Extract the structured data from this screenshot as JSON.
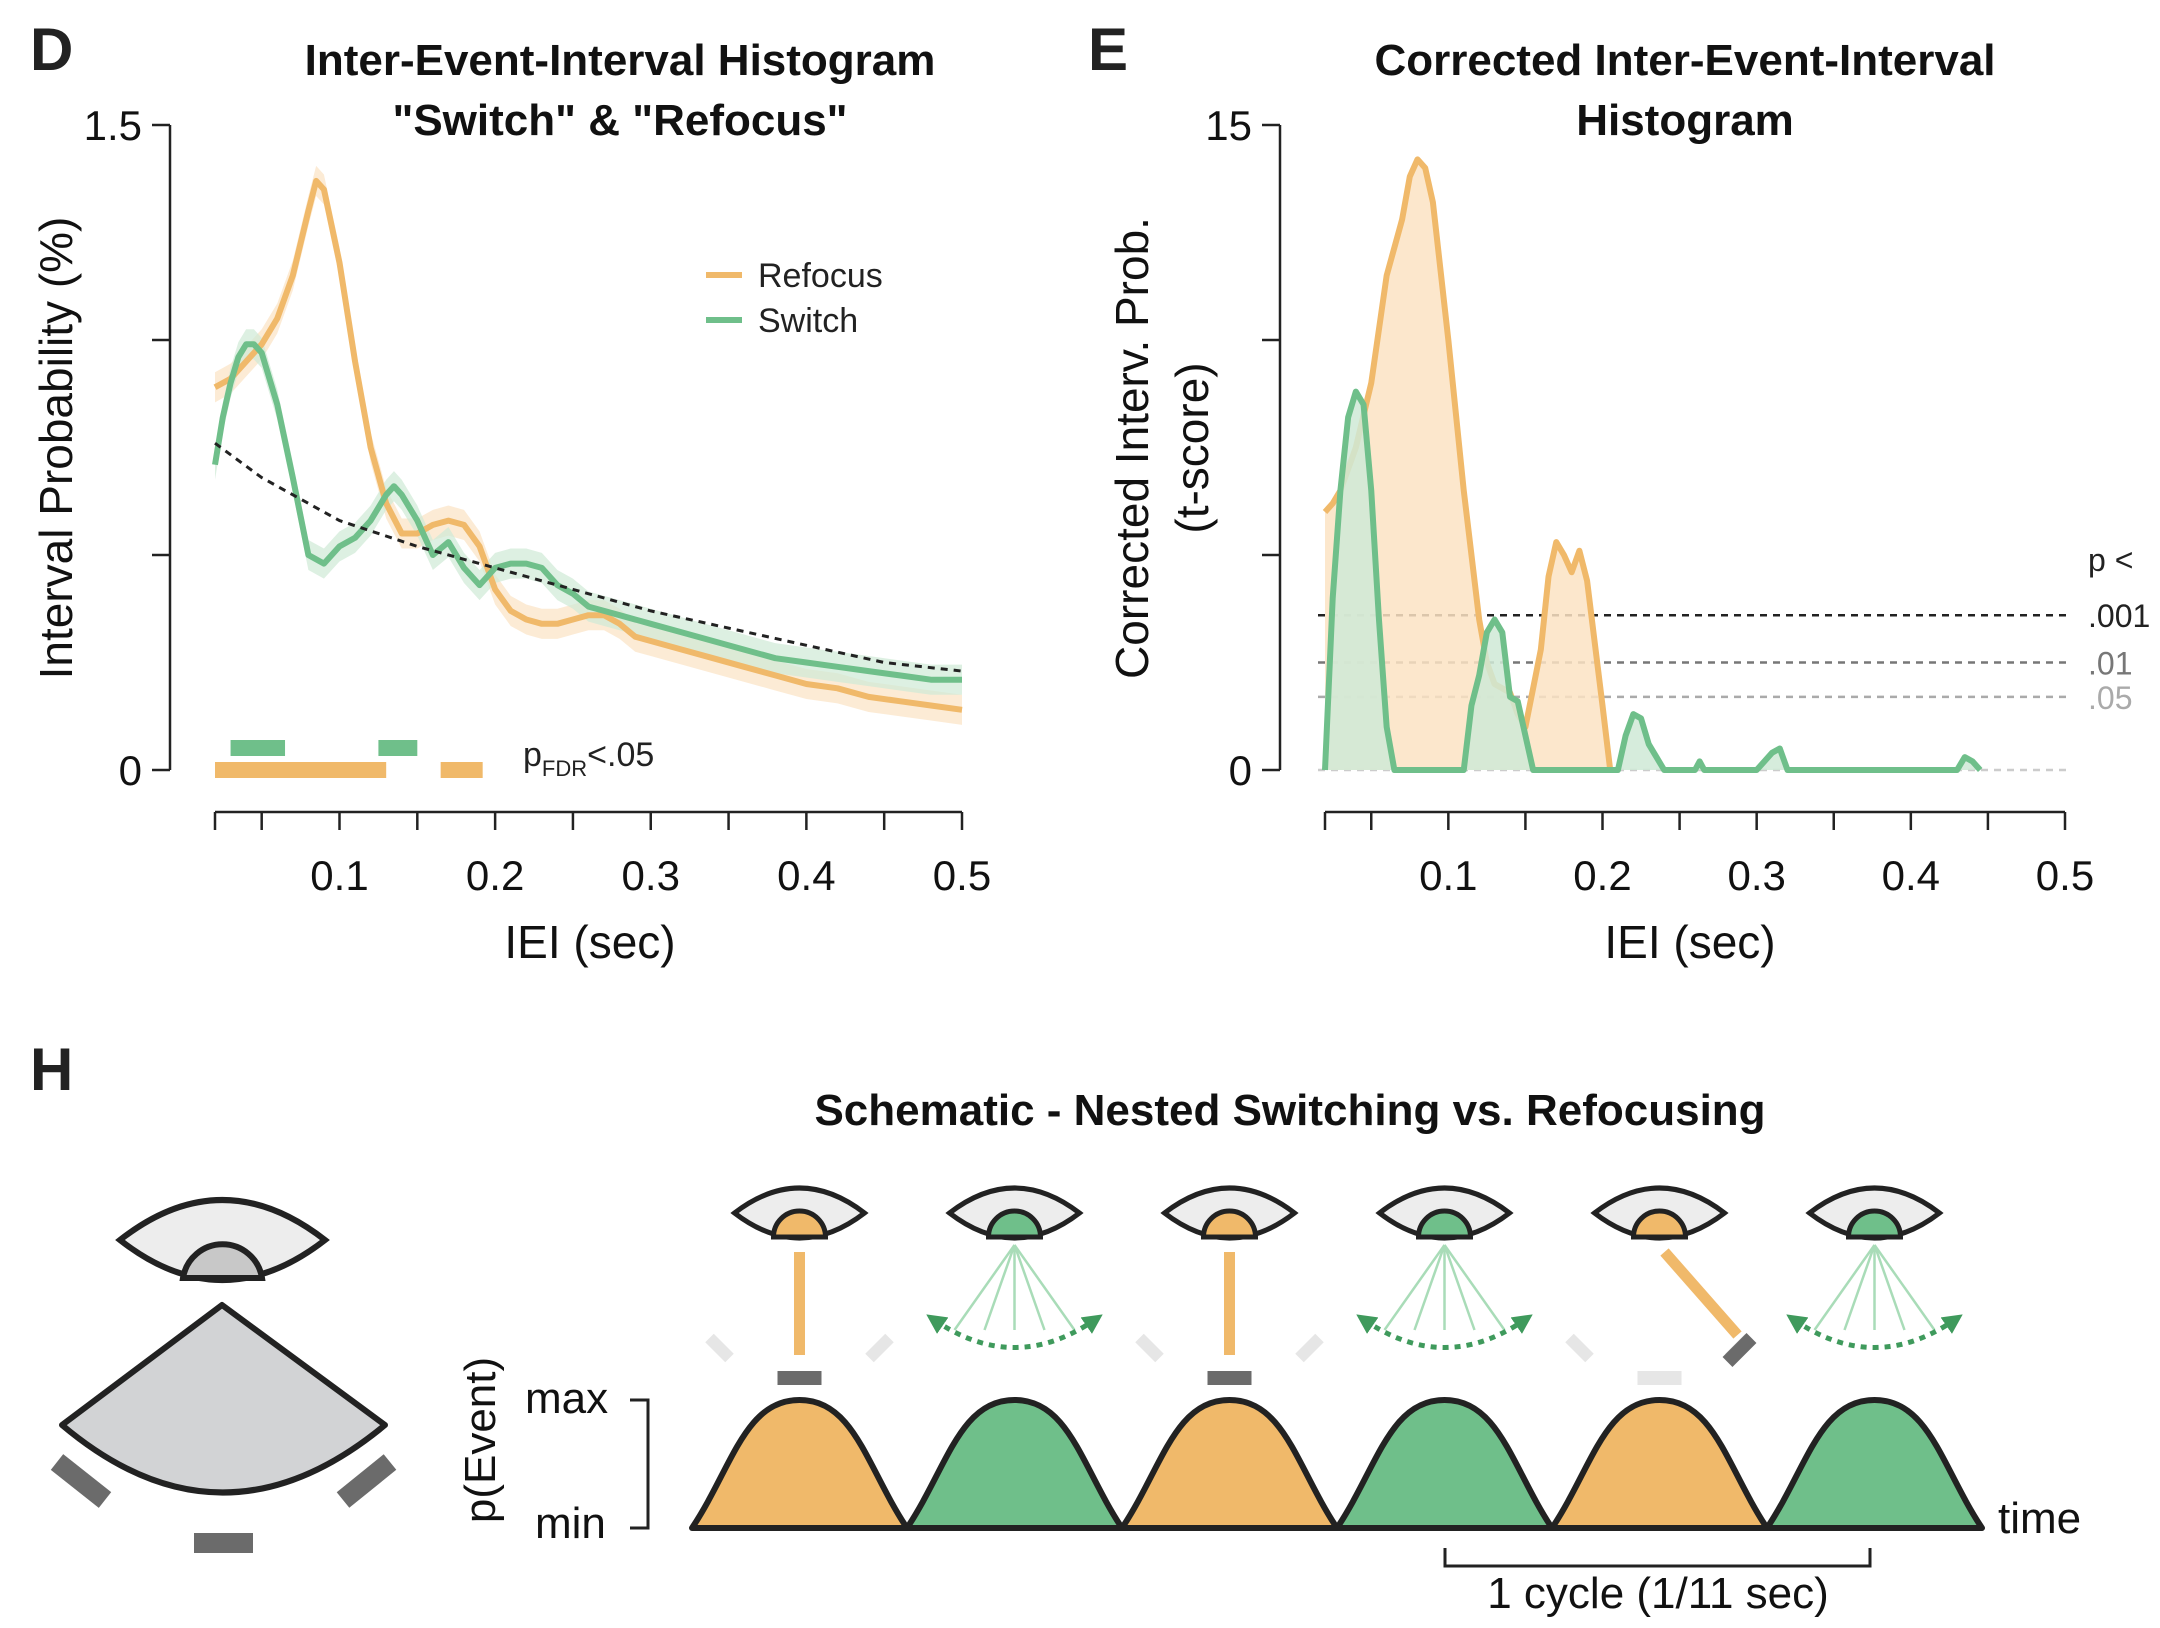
{
  "panels": {
    "D": {
      "letter": "D",
      "title_line1": "Inter-Event-Interval Histogram",
      "title_line2": "\"Switch\" & \"Refocus\""
    },
    "E": {
      "letter": "E",
      "title_line1": "Corrected Inter-Event-Interval",
      "title_line2": "Histogram"
    },
    "H": {
      "letter": "H",
      "title": "Schematic - Nested Switching vs. Refocusing"
    }
  },
  "colors": {
    "refocus": "#f0b96a",
    "switch": "#6fbf8a",
    "refocus_fill": "#fbe3c3",
    "switch_fill": "#cfe9d6"
  },
  "chart_data": [
    {
      "id": "D",
      "type": "line",
      "title": "Inter-Event-Interval Histogram \"Switch\" & \"Refocus\"",
      "xlabel": "IEI (sec)",
      "ylabel": "Interval Probability (%)",
      "xlim": [
        0.02,
        0.5
      ],
      "ylim": [
        0,
        1.5
      ],
      "xticks": [
        0.1,
        0.2,
        0.3,
        0.4,
        0.5
      ],
      "xtick_labels": [
        "0.1",
        "0.2",
        "0.3",
        "0.4",
        "0.5"
      ],
      "yticks": [
        0,
        1.5
      ],
      "ytick_labels": [
        "0",
        "1.5"
      ],
      "legend": {
        "position": "top-right",
        "entries": [
          "Refocus",
          "Switch"
        ]
      },
      "series": [
        {
          "name": "Refocus",
          "color": "#f0b96a",
          "x": [
            0.02,
            0.03,
            0.04,
            0.05,
            0.06,
            0.07,
            0.08,
            0.085,
            0.09,
            0.1,
            0.11,
            0.12,
            0.13,
            0.14,
            0.15,
            0.16,
            0.17,
            0.18,
            0.19,
            0.2,
            0.21,
            0.22,
            0.23,
            0.24,
            0.25,
            0.26,
            0.27,
            0.28,
            0.29,
            0.3,
            0.32,
            0.34,
            0.36,
            0.38,
            0.4,
            0.42,
            0.44,
            0.46,
            0.48,
            0.5
          ],
          "y": [
            0.89,
            0.91,
            0.95,
            0.99,
            1.05,
            1.15,
            1.3,
            1.37,
            1.35,
            1.18,
            0.95,
            0.75,
            0.62,
            0.55,
            0.55,
            0.57,
            0.58,
            0.57,
            0.52,
            0.42,
            0.37,
            0.35,
            0.34,
            0.34,
            0.35,
            0.36,
            0.36,
            0.34,
            0.31,
            0.3,
            0.28,
            0.26,
            0.24,
            0.22,
            0.2,
            0.19,
            0.17,
            0.16,
            0.15,
            0.14
          ]
        },
        {
          "name": "Switch",
          "color": "#6fbf8a",
          "x": [
            0.02,
            0.025,
            0.03,
            0.035,
            0.04,
            0.045,
            0.05,
            0.06,
            0.07,
            0.08,
            0.09,
            0.1,
            0.11,
            0.12,
            0.13,
            0.135,
            0.14,
            0.15,
            0.16,
            0.17,
            0.18,
            0.19,
            0.2,
            0.21,
            0.22,
            0.23,
            0.24,
            0.25,
            0.26,
            0.27,
            0.28,
            0.3,
            0.32,
            0.34,
            0.36,
            0.38,
            0.4,
            0.42,
            0.44,
            0.46,
            0.48,
            0.5
          ],
          "y": [
            0.71,
            0.82,
            0.9,
            0.96,
            0.99,
            0.99,
            0.97,
            0.85,
            0.68,
            0.5,
            0.48,
            0.52,
            0.54,
            0.58,
            0.64,
            0.66,
            0.64,
            0.58,
            0.5,
            0.53,
            0.47,
            0.43,
            0.47,
            0.48,
            0.48,
            0.47,
            0.43,
            0.41,
            0.38,
            0.37,
            0.36,
            0.34,
            0.32,
            0.3,
            0.28,
            0.26,
            0.25,
            0.24,
            0.23,
            0.22,
            0.21,
            0.21
          ]
        },
        {
          "name": "",
          "color": "#222222",
          "dashed": true,
          "x": [
            0.02,
            0.05,
            0.1,
            0.15,
            0.2,
            0.25,
            0.3,
            0.35,
            0.4,
            0.45,
            0.5
          ],
          "y": [
            0.76,
            0.68,
            0.58,
            0.52,
            0.47,
            0.42,
            0.37,
            0.33,
            0.29,
            0.25,
            0.23
          ]
        }
      ],
      "significance": {
        "label_main": "p",
        "label_sub": "FDR",
        "label_tail": "<.05",
        "switch": [
          [
            0.03,
            0.065
          ],
          [
            0.125,
            0.15
          ]
        ],
        "refocus": [
          [
            0.02,
            0.13
          ],
          [
            0.165,
            0.192
          ]
        ]
      }
    },
    {
      "id": "E",
      "type": "area",
      "title": "Corrected Inter-Event-Interval Histogram",
      "xlabel": "IEI (sec)",
      "ylabel_line1": "Corrected Interv. Prob.",
      "ylabel_line2": "(t-score)",
      "xlim": [
        0.02,
        0.5
      ],
      "ylim": [
        0,
        15
      ],
      "xticks": [
        0.1,
        0.2,
        0.3,
        0.4,
        0.5
      ],
      "xtick_labels": [
        "0.1",
        "0.2",
        "0.3",
        "0.4",
        "0.5"
      ],
      "yticks": [
        0,
        15
      ],
      "ytick_labels": [
        "0",
        "15"
      ],
      "thresholds": {
        "header": "p <",
        "levels": [
          {
            "label": ".001",
            "value": 3.6,
            "color": "#222222"
          },
          {
            "label": ".01",
            "value": 2.5,
            "color": "#777777"
          },
          {
            "label": ".05",
            "value": 1.7,
            "color": "#aaaaaa"
          }
        ]
      },
      "series": [
        {
          "name": "Refocus",
          "color": "#f0b96a",
          "x": [
            0.02,
            0.025,
            0.03,
            0.04,
            0.05,
            0.06,
            0.07,
            0.075,
            0.08,
            0.085,
            0.09,
            0.1,
            0.11,
            0.12,
            0.125,
            0.13,
            0.14,
            0.145,
            0.15,
            0.16,
            0.165,
            0.17,
            0.175,
            0.18,
            0.185,
            0.19,
            0.2,
            0.205
          ],
          "y": [
            6.0,
            6.2,
            6.5,
            7.5,
            9.0,
            11.5,
            12.8,
            13.8,
            14.2,
            14.0,
            13.2,
            10.0,
            6.5,
            3.5,
            2.5,
            2.0,
            1.8,
            1.3,
            1.0,
            2.8,
            4.5,
            5.3,
            5.0,
            4.6,
            5.1,
            4.4,
            1.5,
            0.0
          ]
        },
        {
          "name": "Switch",
          "color": "#6fbf8a",
          "x": [
            0.02,
            0.025,
            0.03,
            0.035,
            0.04,
            0.045,
            0.05,
            0.055,
            0.06,
            0.065,
            0.07,
            0.11,
            0.115,
            0.12,
            0.125,
            0.13,
            0.135,
            0.14,
            0.145,
            0.15,
            0.155,
            0.21,
            0.215,
            0.22,
            0.225,
            0.23,
            0.235,
            0.24,
            0.26,
            0.263,
            0.266,
            0.3,
            0.31,
            0.315,
            0.32,
            0.43,
            0.435,
            0.44,
            0.445
          ],
          "y": [
            0.0,
            4.0,
            6.5,
            8.2,
            8.8,
            8.5,
            6.5,
            3.5,
            1.0,
            0.0,
            0.0,
            0.0,
            1.5,
            2.2,
            3.2,
            3.5,
            3.2,
            1.7,
            1.6,
            0.8,
            0.0,
            0.0,
            0.8,
            1.3,
            1.2,
            0.6,
            0.3,
            0.0,
            0.0,
            0.2,
            0.0,
            0.0,
            0.4,
            0.5,
            0.0,
            0.0,
            0.3,
            0.2,
            0.0
          ]
        }
      ]
    }
  ],
  "schematic": {
    "ylabel": "p(Event)",
    "max_label": "max",
    "min_label": "min",
    "time_label": "time",
    "cycle_label": "1 cycle (1/11 sec)",
    "sequence": [
      "refocus",
      "switch",
      "refocus",
      "switch",
      "refocus",
      "switch"
    ]
  }
}
